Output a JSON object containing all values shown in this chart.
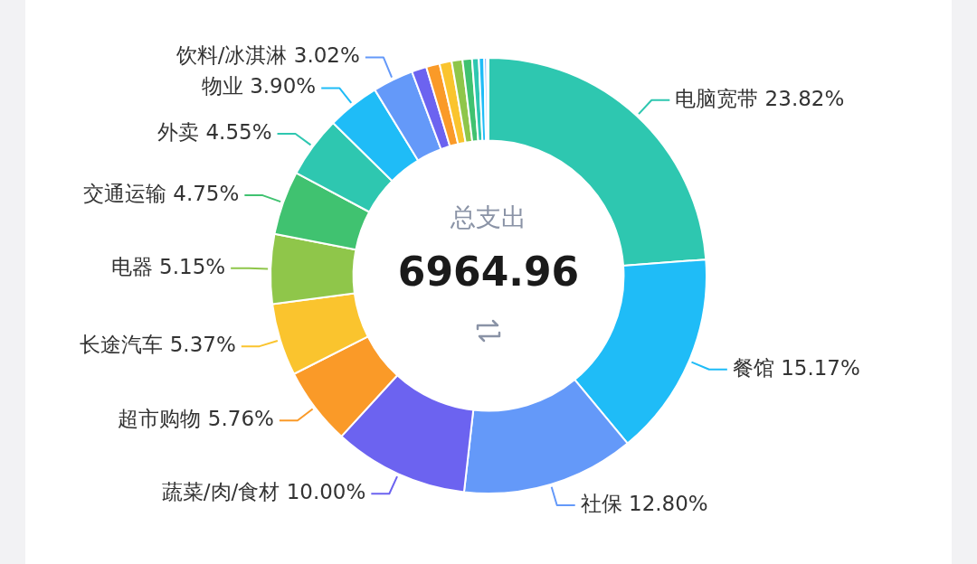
{
  "chart_data": {
    "type": "donut",
    "categories": [
      "电脑宽带",
      "餐馆",
      "社保",
      "蔬菜/肉/食材",
      "超市购物",
      "长途汽车",
      "电器",
      "交通运输",
      "外卖",
      "物业",
      "饮料/冰淇淋",
      null,
      null,
      null,
      null,
      null,
      null,
      null,
      null,
      null
    ],
    "values": [
      23.82,
      15.17,
      12.8,
      10.0,
      5.76,
      5.37,
      5.15,
      4.75,
      4.55,
      3.9,
      3.02,
      1.1,
      1.0,
      0.9,
      0.8,
      0.7,
      0.5,
      0.4,
      0.2,
      0.11
    ],
    "value_labels": [
      "23.82%",
      "15.17%",
      "12.80%",
      "10.00%",
      "5.76%",
      "5.37%",
      "5.15%",
      "4.75%",
      "4.55%",
      "3.90%",
      "3.02%",
      null,
      null,
      null,
      null,
      null,
      null,
      null,
      null,
      null
    ],
    "colors": [
      "#2ec7b0",
      "#1fbcf7",
      "#6499f9",
      "#6c63f0",
      "#fa9a28",
      "#fac42e",
      "#8fc64a",
      "#40c270",
      "#2ec7b0",
      "#1fbcf7",
      "#6499f9",
      "#6c63f0",
      "#fa9a28",
      "#fac42e",
      "#8fc64a",
      "#40c270",
      "#2ec7b0",
      "#1fbcf7",
      "#6499f9",
      "#6c63f0"
    ],
    "annotations": [
      "总支出",
      "6964.96"
    ],
    "legend": false
  }
}
